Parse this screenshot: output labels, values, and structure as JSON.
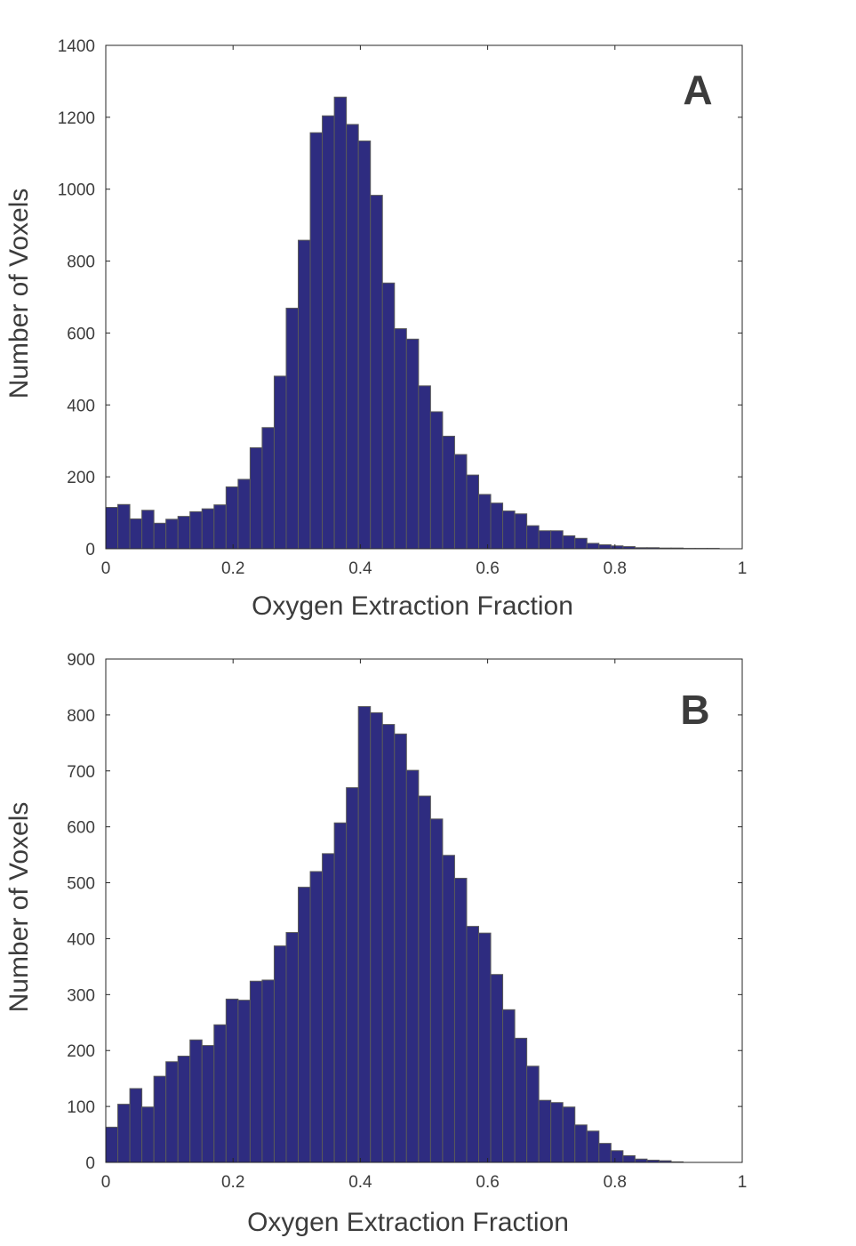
{
  "chart_data": [
    {
      "type": "bar",
      "panel": "A",
      "xlabel": "Oxygen Extraction Fraction",
      "ylabel": "Number of Voxels",
      "xlim": [
        0,
        1
      ],
      "ylim": [
        0,
        1400
      ],
      "xticks": [
        "0",
        "0.2",
        "0.4",
        "0.6",
        "0.8",
        "1"
      ],
      "yticks": [
        "0",
        "200",
        "400",
        "600",
        "800",
        "1000",
        "1200",
        "1400"
      ],
      "bin_width": 0.0189,
      "bar_color": "#2e2c80",
      "edge_color": "#5a5a5a",
      "values": [
        115,
        123,
        83,
        107,
        71,
        82,
        90,
        103,
        111,
        122,
        172,
        193,
        281,
        337,
        480,
        669,
        858,
        1157,
        1204,
        1256,
        1180,
        1134,
        983,
        739,
        612,
        583,
        453,
        381,
        313,
        262,
        205,
        151,
        127,
        105,
        97,
        64,
        50,
        50,
        36,
        29,
        15,
        11,
        8,
        6,
        3,
        3,
        2,
        2,
        1,
        1,
        1,
        0,
        0
      ]
    },
    {
      "type": "bar",
      "panel": "B",
      "xlabel": "Oxygen Extraction Fraction",
      "ylabel": "Number of Voxels",
      "xlim": [
        0,
        1
      ],
      "ylim": [
        0,
        900
      ],
      "xticks": [
        "0",
        "0.2",
        "0.4",
        "0.6",
        "0.8",
        "1"
      ],
      "yticks": [
        "0",
        "100",
        "200",
        "300",
        "400",
        "500",
        "600",
        "700",
        "800",
        "900"
      ],
      "bin_width": 0.0189,
      "bar_color": "#2e2c80",
      "edge_color": "#5a5a5a",
      "values": [
        63,
        104,
        132,
        99,
        154,
        180,
        190,
        219,
        209,
        246,
        292,
        290,
        324,
        326,
        387,
        411,
        492,
        520,
        552,
        607,
        670,
        815,
        804,
        783,
        766,
        701,
        655,
        614,
        549,
        508,
        422,
        410,
        336,
        273,
        222,
        172,
        111,
        107,
        99,
        67,
        56,
        34,
        21,
        12,
        6,
        4,
        3,
        1,
        0,
        0,
        0,
        0,
        0
      ]
    }
  ]
}
